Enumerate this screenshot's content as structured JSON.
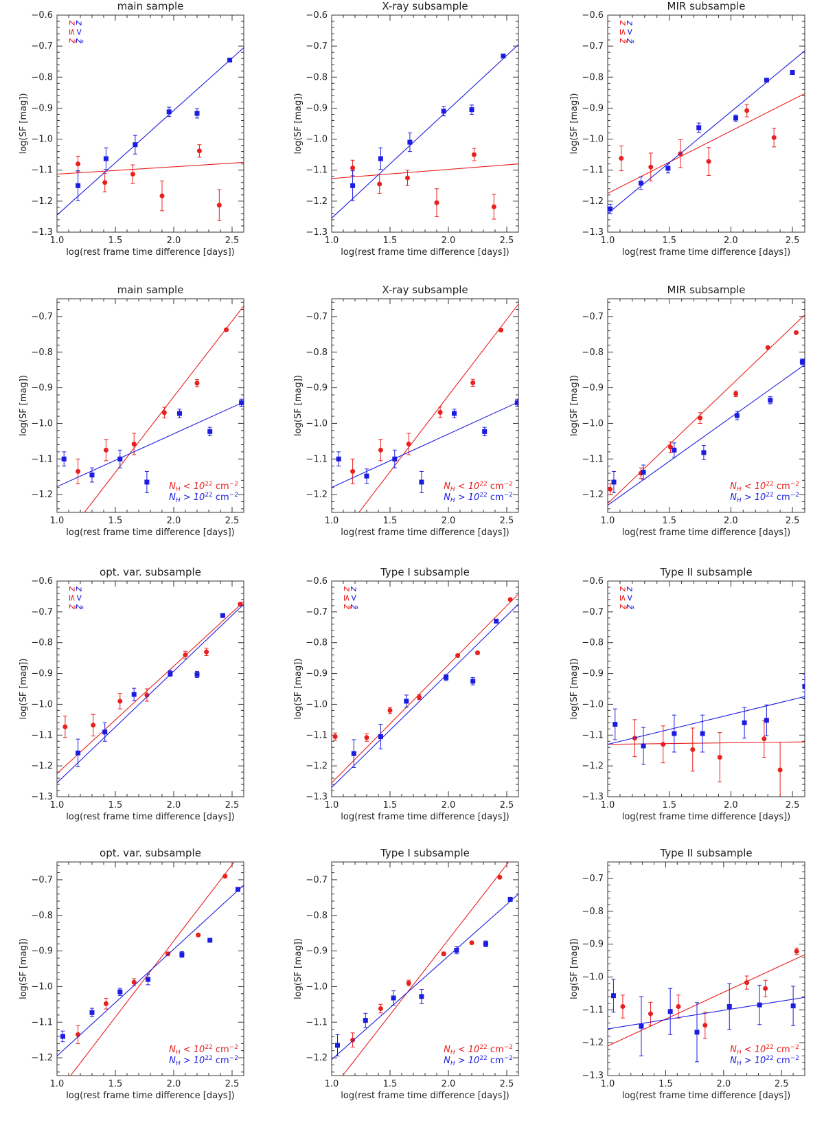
{
  "colors": {
    "z_low": "#e8201e",
    "z_high": "#1c1ce0",
    "axis": "#333333"
  },
  "legend_sets": {
    "z": [
      "z ≤ z̃",
      "z > z̃"
    ],
    "nh": [
      "N_H < 10^22 cm^-2",
      "N_H > 10^22 cm^-2"
    ]
  },
  "chart_data": [
    {
      "id": "r1c1",
      "type": "scatter",
      "title": "main sample",
      "xlabel": "log(rest frame time difference [days])",
      "ylabel": "log(SF [mag])",
      "xlim": [
        1.0,
        2.6
      ],
      "ylim": [
        -1.3,
        -0.6
      ],
      "legend": "z",
      "legend_position": "top-left",
      "series": [
        {
          "name": "z ≤ z̃",
          "color": "red",
          "marker": "circle",
          "x": [
            1.18,
            1.41,
            1.65,
            1.9,
            2.22,
            2.39
          ],
          "y": [
            -1.08,
            -1.14,
            -1.113,
            -1.183,
            -1.038,
            -1.213
          ],
          "err": [
            0.025,
            0.03,
            0.03,
            0.048,
            0.02,
            0.05
          ],
          "fit": [
            -1.113,
            -1.075
          ]
        },
        {
          "name": "z > z̃",
          "color": "blue",
          "marker": "square",
          "x": [
            1.18,
            1.42,
            1.67,
            1.96,
            2.2,
            2.48
          ],
          "y": [
            -1.15,
            -1.063,
            -1.018,
            -0.912,
            -0.917,
            -0.745
          ],
          "err": [
            0.048,
            0.035,
            0.03,
            0.015,
            0.015,
            0.005
          ],
          "fit": [
            -1.245,
            -0.705
          ]
        }
      ]
    },
    {
      "id": "r1c2",
      "type": "scatter",
      "title": "X-ray subsample",
      "xlabel": "log(rest frame time difference [days])",
      "ylabel": "log(SF [mag])",
      "xlim": [
        1.0,
        2.6
      ],
      "ylim": [
        -1.3,
        -0.6
      ],
      "legend": "none",
      "legend_position": "",
      "series": [
        {
          "name": "z ≤ z̃",
          "color": "red",
          "marker": "circle",
          "x": [
            1.18,
            1.41,
            1.65,
            1.9,
            2.22,
            2.39
          ],
          "y": [
            -1.093,
            -1.145,
            -1.125,
            -1.205,
            -1.05,
            -1.218
          ],
          "err": [
            0.025,
            0.03,
            0.025,
            0.045,
            0.02,
            0.04
          ],
          "fit": [
            -1.127,
            -1.08
          ]
        },
        {
          "name": "z > z̃",
          "color": "blue",
          "marker": "square",
          "x": [
            1.18,
            1.42,
            1.67,
            1.96,
            2.2,
            2.47
          ],
          "y": [
            -1.15,
            -1.063,
            -1.01,
            -0.91,
            -0.905,
            -0.732
          ],
          "err": [
            0.048,
            0.035,
            0.03,
            0.015,
            0.015,
            0.005
          ],
          "fit": [
            -1.255,
            -0.695
          ]
        }
      ]
    },
    {
      "id": "r1c3",
      "type": "scatter",
      "title": "MIR subsample",
      "xlabel": "log(rest frame time difference [days])",
      "ylabel": "log(SF [mag])",
      "xlim": [
        1.0,
        2.6
      ],
      "ylim": [
        -1.3,
        -0.6
      ],
      "legend": "z",
      "legend_position": "top-left",
      "series": [
        {
          "name": "z ≤ z̃",
          "color": "red",
          "marker": "circle",
          "x": [
            1.11,
            1.35,
            1.59,
            1.82,
            2.13,
            2.35
          ],
          "y": [
            -1.062,
            -1.09,
            -1.047,
            -1.072,
            -0.908,
            -0.995
          ],
          "err": [
            0.04,
            0.045,
            0.045,
            0.045,
            0.02,
            0.03
          ],
          "fit": [
            -1.175,
            -0.853
          ]
        },
        {
          "name": "z > z̃",
          "color": "blue",
          "marker": "square",
          "x": [
            1.02,
            1.27,
            1.49,
            1.74,
            2.04,
            2.29,
            2.5
          ],
          "y": [
            -1.225,
            -1.142,
            -1.094,
            -0.963,
            -0.932,
            -0.81,
            -0.785
          ],
          "err": [
            0.015,
            0.02,
            0.015,
            0.015,
            0.01,
            0.005,
            0.005
          ],
          "fit": [
            -1.24,
            -0.715
          ]
        }
      ]
    },
    {
      "id": "r2c1",
      "type": "scatter",
      "title": "main sample",
      "xlabel": "log(rest frame time difference [days])",
      "ylabel": "log(SF [mag])",
      "xlim": [
        1.0,
        2.6
      ],
      "ylim": [
        -1.25,
        -0.65
      ],
      "legend": "nh",
      "legend_position": "bottom-right",
      "series": [
        {
          "name": "N_H < 10^22 cm^-2",
          "color": "red",
          "marker": "circle",
          "x": [
            1.18,
            1.42,
            1.66,
            1.92,
            2.2,
            2.45
          ],
          "y": [
            -1.135,
            -1.075,
            -1.058,
            -0.97,
            -0.887,
            -0.737
          ],
          "err": [
            0.035,
            0.03,
            0.03,
            0.015,
            0.01,
            0.003
          ],
          "fit": [
            -1.35,
            -0.67
          ]
        },
        {
          "name": "N_H > 10^22 cm^-2",
          "color": "blue",
          "marker": "square",
          "x": [
            1.06,
            1.3,
            1.54,
            1.77,
            2.05,
            2.31,
            2.58
          ],
          "y": [
            -1.1,
            -1.145,
            -1.1,
            -1.165,
            -0.972,
            -1.023,
            -0.942
          ],
          "err": [
            0.02,
            0.02,
            0.025,
            0.03,
            0.012,
            0.012,
            0.01
          ],
          "fit": [
            -1.178,
            -0.94
          ]
        }
      ]
    },
    {
      "id": "r2c2",
      "type": "scatter",
      "title": "X-ray subsample",
      "xlabel": "log(rest frame time difference [days])",
      "ylabel": "log(SF [mag])",
      "xlim": [
        1.0,
        2.6
      ],
      "ylim": [
        -1.25,
        -0.65
      ],
      "legend": "nh",
      "legend_position": "bottom-right",
      "series": [
        {
          "name": "N_H < 10^22 cm^-2",
          "color": "red",
          "marker": "circle",
          "x": [
            1.18,
            1.42,
            1.66,
            1.93,
            2.21,
            2.45
          ],
          "y": [
            -1.135,
            -1.075,
            -1.058,
            -0.969,
            -0.886,
            -0.738
          ],
          "err": [
            0.035,
            0.03,
            0.03,
            0.015,
            0.01,
            0.003
          ],
          "fit": [
            -1.35,
            -0.665
          ]
        },
        {
          "name": "N_H > 10^22 cm^-2",
          "color": "blue",
          "marker": "square",
          "x": [
            1.06,
            1.3,
            1.54,
            1.77,
            2.05,
            2.31,
            2.59
          ],
          "y": [
            -1.1,
            -1.148,
            -1.1,
            -1.165,
            -0.972,
            -1.023,
            -0.942
          ],
          "err": [
            0.02,
            0.02,
            0.025,
            0.03,
            0.012,
            0.012,
            0.01
          ],
          "fit": [
            -1.18,
            -0.94
          ]
        }
      ]
    },
    {
      "id": "r2c3",
      "type": "scatter",
      "title": "MIR subsample",
      "xlabel": "log(rest frame time difference [days])",
      "ylabel": "log(SF [mag])",
      "xlim": [
        1.0,
        2.6
      ],
      "ylim": [
        -1.25,
        -0.65
      ],
      "legend": "nh",
      "legend_position": "bottom-right",
      "series": [
        {
          "name": "N_H < 10^22 cm^-2",
          "color": "red",
          "marker": "circle",
          "x": [
            1.02,
            1.27,
            1.51,
            1.75,
            2.04,
            2.3,
            2.53
          ],
          "y": [
            -1.185,
            -1.14,
            -1.067,
            -0.985,
            -0.917,
            -0.787,
            -0.745
          ],
          "err": [
            0.015,
            0.015,
            0.015,
            0.015,
            0.008,
            0.003,
            0.003
          ],
          "fit": [
            -1.225,
            -0.695
          ]
        },
        {
          "name": "N_H > 10^22 cm^-2",
          "color": "blue",
          "marker": "square",
          "x": [
            1.05,
            1.29,
            1.54,
            1.78,
            2.05,
            2.32,
            2.58
          ],
          "y": [
            -1.165,
            -1.137,
            -1.075,
            -1.082,
            -0.978,
            -0.935,
            -0.827
          ],
          "err": [
            0.03,
            0.02,
            0.02,
            0.02,
            0.012,
            0.01,
            0.008
          ],
          "fit": [
            -1.23,
            -0.835
          ]
        }
      ]
    },
    {
      "id": "r3c1",
      "type": "scatter",
      "title": "opt. var. subsample",
      "xlabel": "log(rest frame time difference [days])",
      "ylabel": "log(SF [mag])",
      "xlim": [
        1.0,
        2.6
      ],
      "ylim": [
        -1.3,
        -0.6
      ],
      "legend": "z",
      "legend_position": "top-left",
      "series": [
        {
          "name": "z ≤ z̃",
          "color": "red",
          "marker": "circle",
          "x": [
            1.07,
            1.31,
            1.54,
            1.77,
            2.1,
            2.28,
            2.57
          ],
          "y": [
            -1.073,
            -1.068,
            -0.99,
            -0.97,
            -0.84,
            -0.83,
            -0.675
          ],
          "err": [
            0.035,
            0.035,
            0.025,
            0.02,
            0.012,
            0.012,
            0.005
          ],
          "fit": [
            -1.225,
            -0.667
          ]
        },
        {
          "name": "z > z̃",
          "color": "blue",
          "marker": "square",
          "x": [
            1.18,
            1.41,
            1.66,
            1.97,
            2.2,
            2.42
          ],
          "y": [
            -1.158,
            -1.09,
            -0.968,
            -0.9,
            -0.903,
            -0.712
          ],
          "err": [
            0.045,
            0.03,
            0.02,
            0.01,
            0.01,
            0.003
          ],
          "fit": [
            -1.255,
            -0.675
          ]
        }
      ]
    },
    {
      "id": "r3c2",
      "type": "scatter",
      "title": "Type I subsample",
      "xlabel": "log(rest frame time difference [days])",
      "ylabel": "log(SF [mag])",
      "xlim": [
        1.0,
        2.6
      ],
      "ylim": [
        -1.3,
        -0.6
      ],
      "legend": "z",
      "legend_position": "top-left",
      "series": [
        {
          "name": "z ≤ z̃",
          "color": "red",
          "marker": "circle",
          "x": [
            1.03,
            1.3,
            1.5,
            1.75,
            2.08,
            2.25,
            2.53
          ],
          "y": [
            -1.105,
            -1.108,
            -1.02,
            -0.977,
            -0.842,
            -0.833,
            -0.66
          ],
          "err": [
            0.012,
            0.012,
            0.01,
            0.008,
            0.005,
            0.005,
            0.003
          ],
          "fit": [
            -1.255,
            -0.642
          ]
        },
        {
          "name": "z > z̃",
          "color": "blue",
          "marker": "square",
          "x": [
            1.19,
            1.42,
            1.64,
            1.98,
            2.21,
            2.41
          ],
          "y": [
            -1.16,
            -1.105,
            -0.99,
            -0.913,
            -0.925,
            -0.73
          ],
          "err": [
            0.045,
            0.04,
            0.02,
            0.01,
            0.012,
            0.003
          ],
          "fit": [
            -1.27,
            -0.675
          ]
        }
      ]
    },
    {
      "id": "r3c3",
      "type": "scatter",
      "title": "Type II subsample",
      "xlabel": "log(rest frame time difference [days])",
      "ylabel": "log(SF [mag])",
      "xlim": [
        1.0,
        2.6
      ],
      "ylim": [
        -1.3,
        -0.6
      ],
      "legend": "z",
      "legend_position": "top-left",
      "series": [
        {
          "name": "z ≤ z̃",
          "color": "red",
          "marker": "circle",
          "x": [
            1.22,
            1.45,
            1.69,
            1.91,
            2.27,
            2.4
          ],
          "y": [
            -1.11,
            -1.13,
            -1.147,
            -1.172,
            -1.112,
            -1.213
          ],
          "err": [
            0.06,
            0.06,
            0.07,
            0.08,
            0.06,
            0.09
          ],
          "fit": [
            -1.13,
            -1.122
          ]
        },
        {
          "name": "z > z̃",
          "color": "blue",
          "marker": "square",
          "x": [
            1.06,
            1.29,
            1.54,
            1.77,
            2.11,
            2.29,
            2.6
          ],
          "y": [
            -1.065,
            -1.135,
            -1.095,
            -1.095,
            -1.06,
            -1.052,
            -0.942
          ],
          "err": [
            0.05,
            0.06,
            0.06,
            0.06,
            0.05,
            0.05,
            0.04
          ],
          "fit": [
            -1.13,
            -0.975
          ]
        }
      ]
    },
    {
      "id": "r4c1",
      "type": "scatter",
      "title": "opt. var. subsample",
      "xlabel": "log(rest frame time difference [days])",
      "ylabel": "log(SF [mag])",
      "xlim": [
        1.0,
        2.6
      ],
      "ylim": [
        -1.25,
        -0.65
      ],
      "legend": "nh",
      "legend_position": "bottom-right",
      "series": [
        {
          "name": "N_H < 10^22 cm^-2",
          "color": "red",
          "marker": "circle",
          "x": [
            1.18,
            1.42,
            1.66,
            1.95,
            2.21,
            2.44
          ],
          "y": [
            -1.135,
            -1.048,
            -0.988,
            -0.908,
            -0.855,
            -0.69
          ],
          "err": [
            0.025,
            0.015,
            0.01,
            0.005,
            0.003,
            0.002
          ],
          "fit": [
            -1.3,
            -0.615
          ]
        },
        {
          "name": "N_H > 10^22 cm^-2",
          "color": "blue",
          "marker": "square",
          "x": [
            1.05,
            1.3,
            1.54,
            1.78,
            2.07,
            2.31,
            2.55
          ],
          "y": [
            -1.14,
            -1.073,
            -1.015,
            -0.98,
            -0.91,
            -0.87,
            -0.727
          ],
          "err": [
            0.015,
            0.012,
            0.01,
            0.015,
            0.008,
            0.005,
            0.003
          ],
          "fit": [
            -1.195,
            -0.715
          ]
        }
      ]
    },
    {
      "id": "r4c2",
      "type": "scatter",
      "title": "Type I subsample",
      "xlabel": "log(rest frame time difference [days])",
      "ylabel": "log(SF [mag])",
      "xlim": [
        1.0,
        2.6
      ],
      "ylim": [
        -1.25,
        -0.65
      ],
      "legend": "nh",
      "legend_position": "bottom-right",
      "series": [
        {
          "name": "N_H < 10^22 cm^-2",
          "color": "red",
          "marker": "circle",
          "x": [
            1.18,
            1.42,
            1.66,
            1.96,
            2.2,
            2.44
          ],
          "y": [
            -1.15,
            -1.062,
            -0.99,
            -0.908,
            -0.877,
            -0.693
          ],
          "err": [
            0.02,
            0.012,
            0.008,
            0.005,
            0.003,
            0.002
          ],
          "fit": [
            -1.29,
            -0.615
          ]
        },
        {
          "name": "N_H > 10^22 cm^-2",
          "color": "blue",
          "marker": "square",
          "x": [
            1.05,
            1.29,
            1.53,
            1.77,
            2.07,
            2.32,
            2.53
          ],
          "y": [
            -1.165,
            -1.095,
            -1.032,
            -1.028,
            -0.898,
            -0.88,
            -0.755
          ],
          "err": [
            0.03,
            0.02,
            0.02,
            0.02,
            0.01,
            0.008,
            0.003
          ],
          "fit": [
            -1.205,
            -0.74
          ]
        }
      ]
    },
    {
      "id": "r4c3",
      "type": "scatter",
      "title": "Type II subsample",
      "xlabel": "log(rest frame time difference [days])",
      "ylabel": "log(SF [mag])",
      "xlim": [
        1.0,
        2.7
      ],
      "ylim": [
        -1.3,
        -0.65
      ],
      "legend": "nh",
      "legend_position": "bottom-right",
      "series": [
        {
          "name": "N_H < 10^22 cm^-2",
          "color": "red",
          "marker": "circle",
          "x": [
            1.13,
            1.37,
            1.61,
            1.84,
            2.2,
            2.36,
            2.63
          ],
          "y": [
            -1.09,
            -1.112,
            -1.09,
            -1.147,
            -1.017,
            -1.035,
            -0.922
          ],
          "err": [
            0.035,
            0.035,
            0.035,
            0.04,
            0.02,
            0.025,
            0.01
          ],
          "fit": [
            -1.21,
            -0.932
          ]
        },
        {
          "name": "N_H > 10^22 cm^-2",
          "color": "blue",
          "marker": "square",
          "x": [
            1.05,
            1.29,
            1.54,
            1.77,
            2.05,
            2.31,
            2.6
          ],
          "y": [
            -1.057,
            -1.15,
            -1.105,
            -1.168,
            -1.09,
            -1.085,
            -1.088
          ],
          "err": [
            0.05,
            0.09,
            0.07,
            0.09,
            0.07,
            0.06,
            0.06
          ],
          "fit": [
            -1.158,
            -1.062
          ]
        }
      ]
    }
  ]
}
